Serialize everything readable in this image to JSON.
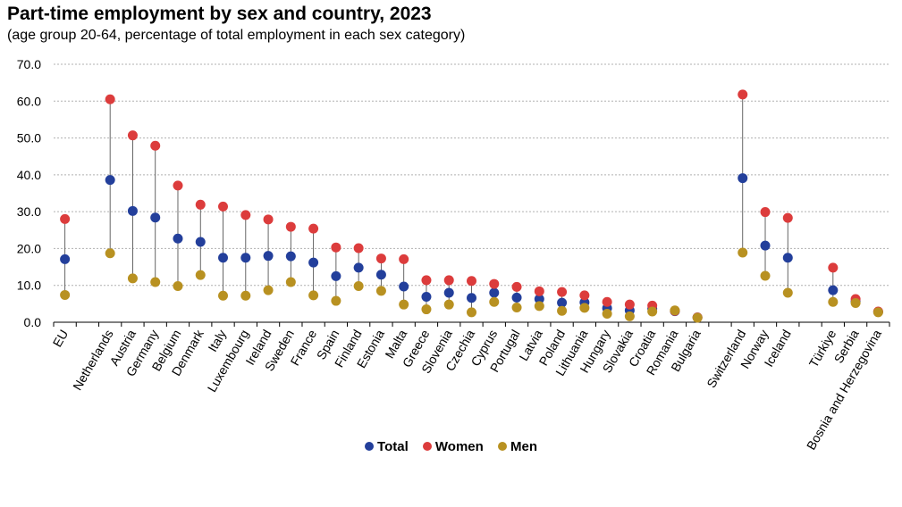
{
  "chart_data": {
    "type": "scatter",
    "title": "Part-time employment by sex and country, 2023",
    "subtitle": "(age group 20-64, percentage of total employment in each sex category)",
    "ylim": [
      0,
      70
    ],
    "yticks": [
      "0.0",
      "10.0",
      "20.0",
      "30.0",
      "40.0",
      "50.0",
      "60.0",
      "70.0"
    ],
    "grid": true,
    "legend_position": "bottom-center",
    "groups": [
      [
        "EU"
      ],
      [
        "Netherlands",
        "Austria",
        "Germany",
        "Belgium",
        "Denmark",
        "Italy",
        "Luxembourg",
        "Ireland",
        "Sweden",
        "France",
        "Spain",
        "Finland",
        "Estonia",
        "Malta",
        "Greece",
        "Slovenia",
        "Czechia",
        "Cyprus",
        "Portugal",
        "Latvia",
        "Poland",
        "Lithuania",
        "Hungary",
        "Slovakia",
        "Croatia",
        "Romania",
        "Bulgaria"
      ],
      [
        "Switzerland",
        "Norway",
        "Iceland"
      ],
      [
        "Türkiye",
        "Serbia",
        "Bosnia and Herzegovina"
      ]
    ],
    "categories": [
      "EU",
      "Netherlands",
      "Austria",
      "Germany",
      "Belgium",
      "Denmark",
      "Italy",
      "Luxembourg",
      "Ireland",
      "Sweden",
      "France",
      "Spain",
      "Finland",
      "Estonia",
      "Malta",
      "Greece",
      "Slovenia",
      "Czechia",
      "Cyprus",
      "Portugal",
      "Latvia",
      "Poland",
      "Lithuania",
      "Hungary",
      "Slovakia",
      "Croatia",
      "Romania",
      "Bulgaria",
      "Switzerland",
      "Norway",
      "Iceland",
      "Türkiye",
      "Serbia",
      "Bosnia and Herzegovina"
    ],
    "series": [
      {
        "name": "Total",
        "color": "#233f9b",
        "values": [
          17.1,
          38.6,
          30.2,
          28.4,
          22.7,
          21.8,
          17.5,
          17.5,
          18.0,
          17.9,
          16.2,
          12.5,
          14.8,
          12.9,
          9.7,
          6.9,
          8.0,
          6.6,
          8.0,
          6.7,
          6.3,
          5.3,
          5.4,
          3.8,
          3.2,
          3.7,
          3.0,
          1.3,
          39.1,
          20.8,
          17.5,
          8.7,
          5.6,
          2.8
        ]
      },
      {
        "name": "Women",
        "color": "#dc3c3c",
        "values": [
          28.0,
          60.5,
          50.7,
          47.9,
          37.1,
          31.9,
          31.4,
          29.1,
          27.9,
          25.9,
          25.4,
          20.3,
          20.1,
          17.3,
          17.1,
          11.4,
          11.4,
          11.2,
          10.4,
          9.6,
          8.4,
          8.2,
          7.3,
          5.5,
          4.8,
          4.5,
          3.1,
          1.3,
          61.8,
          29.9,
          28.3,
          14.8,
          6.3,
          2.9
        ]
      },
      {
        "name": "Men",
        "color": "#b89121",
        "values": [
          7.4,
          18.7,
          11.9,
          10.9,
          9.8,
          12.8,
          7.2,
          7.2,
          8.7,
          10.9,
          7.3,
          5.8,
          9.8,
          8.5,
          4.8,
          3.5,
          4.8,
          2.7,
          5.5,
          4.0,
          4.4,
          3.1,
          3.9,
          2.3,
          1.6,
          2.9,
          3.2,
          1.2,
          18.9,
          12.6,
          8.0,
          5.5,
          5.2,
          2.7
        ]
      }
    ]
  }
}
